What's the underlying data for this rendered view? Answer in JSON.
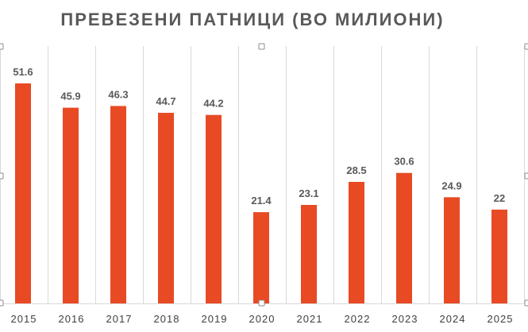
{
  "chart_data": {
    "type": "bar",
    "title": "ПРЕВЕЗЕНИ ПАТНИЦИ (ВО МИЛИОНИ)",
    "categories": [
      "2015",
      "2016",
      "2017",
      "2018",
      "2019",
      "2020",
      "2021",
      "2022",
      "2023",
      "2024",
      "2025"
    ],
    "values": [
      51.6,
      45.9,
      46.3,
      44.7,
      44.2,
      21.4,
      23.1,
      28.5,
      30.6,
      24.9,
      22
    ],
    "value_labels": [
      "51.6",
      "45.9",
      "46.3",
      "44.7",
      "44.2",
      "21.4",
      "23.1",
      "28.5",
      "30.6",
      "24.9",
      "22"
    ],
    "ylim": [
      0,
      60
    ],
    "grid": "vertical",
    "colors": {
      "bar": "#e84a24",
      "grid": "#d9d9d9",
      "text": "#595959"
    }
  }
}
